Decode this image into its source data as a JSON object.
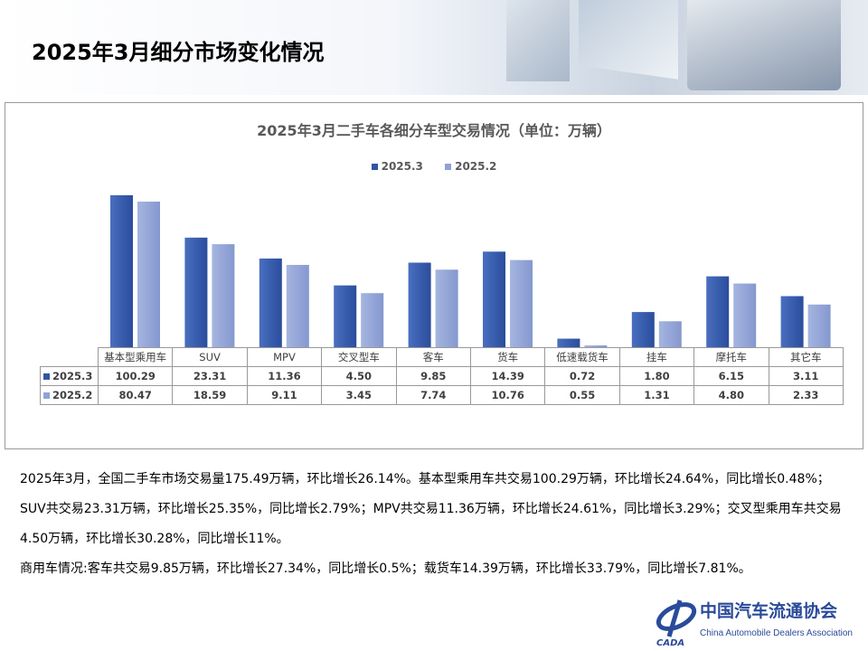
{
  "page": {
    "title": "2025年3月细分市场变化情况"
  },
  "chart_data": {
    "type": "bar",
    "title": "2025年3月二手车各细分车型交易情况（单位：万辆）",
    "categories": [
      "基本型乘用车",
      "SUV",
      "MPV",
      "交叉型车",
      "客车",
      "货车",
      "低速载货车",
      "挂车",
      "摩托车",
      "其它车"
    ],
    "series": [
      {
        "name": "2025.3",
        "color": "#2f55a4",
        "values": [
          100.29,
          23.31,
          11.36,
          4.5,
          9.85,
          14.39,
          0.72,
          1.8,
          6.15,
          3.11
        ],
        "labels": [
          "100.29",
          "23.31",
          "11.36",
          "4.50",
          "9.85",
          "14.39",
          "0.72",
          "1.80",
          "6.15",
          "3.11"
        ]
      },
      {
        "name": "2025.2",
        "color": "#8fa2d6",
        "values": [
          80.47,
          18.59,
          9.11,
          3.45,
          7.74,
          10.76,
          0.55,
          1.31,
          4.8,
          2.33
        ],
        "labels": [
          "80.47",
          "18.59",
          "9.11",
          "3.45",
          "7.74",
          "10.76",
          "0.55",
          "1.31",
          "4.80",
          "2.33"
        ]
      }
    ],
    "yscale": "log",
    "y_axis_visible": false,
    "grid": false,
    "legend": "top",
    "data_table": true
  },
  "notes": [
    "2025年3月，全国二手车市场交易量175.49万辆，环比增长26.14%。基本型乘用车共交易100.29万辆，环比增长24.64%，同比增长0.48%；SUV共交易23.31万辆，环比增长25.35%，同比增长2.79%；MPV共交易11.36万辆，环比增长24.61%，同比增长3.29%；交叉型乘用车共交易4.50万辆，环比增长30.28%，同比增长11%。",
    "商用车情况:客车共交易9.85万辆，环比增长27.34%，同比增长0.5%；载货车14.39万辆，环比增长33.79%，同比增长7.81%。"
  ],
  "logo": {
    "abbr": "CADA",
    "name_cn": "中国汽车流通协会",
    "name_en": "China Automobile Dealers Association"
  }
}
